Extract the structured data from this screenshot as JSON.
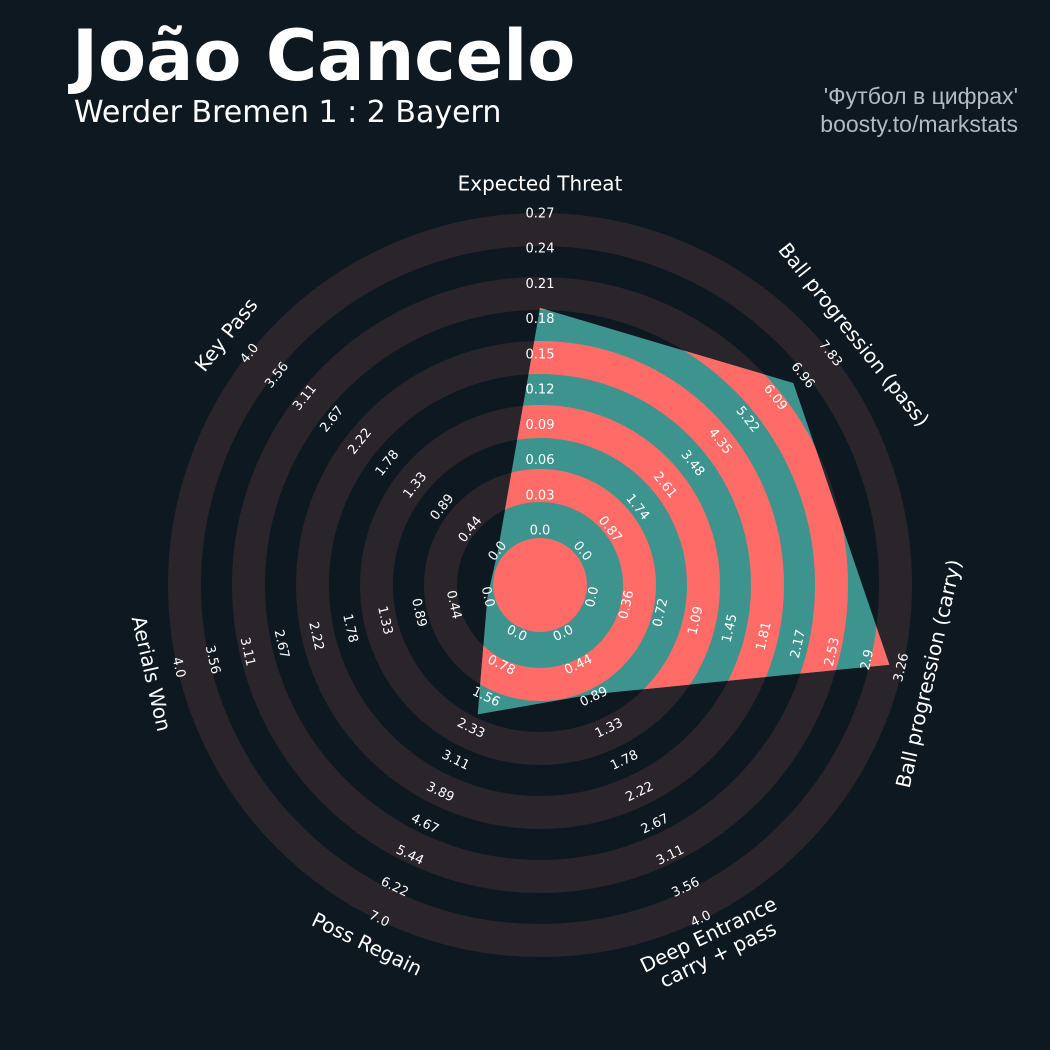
{
  "chart_data": {
    "type": "radar",
    "title": "João Cancelo",
    "subtitle": "Werder Bremen 1 : 2 Bayern",
    "annotations": [
      "'Футбол в цифрах'",
      "boosty.to/markstats"
    ],
    "color": "#3d948f",
    "highlight_color": "#ff6b66",
    "ring_color": "#29252b",
    "params": [
      "Expected Threat",
      "Ball progression (pass)",
      "Ball progression (carry)",
      "Deep Entrance\ncarry + pass",
      "Poss Regain",
      "Aerials Won",
      "Key Pass"
    ],
    "values": [
      0.19,
      6.67,
      3.13,
      0.85,
      1.98,
      0,
      0
    ],
    "axes": [
      {
        "lim": [
          0,
          0.27
        ],
        "ticks": [
          {
            "value": 0,
            "label": "0.0"
          },
          0.03,
          0.06,
          0.09,
          0.12,
          0.15,
          0.18,
          0.21,
          0.24,
          0.27
        ]
      },
      {
        "lim": [
          0,
          7.83
        ],
        "ticks": [
          {
            "value": 0,
            "label": "0.0"
          },
          0.87,
          1.74,
          2.61,
          3.48,
          4.35,
          5.22,
          6.09,
          6.96,
          7.83
        ]
      },
      {
        "lim": [
          0,
          3.26
        ],
        "ticks": [
          {
            "value": 0,
            "label": "0.0"
          },
          0.36,
          0.72,
          1.09,
          1.45,
          1.81,
          2.17,
          2.53,
          2.9,
          3.26
        ]
      },
      {
        "lim": [
          0,
          4
        ],
        "ticks": [
          {
            "value": 0,
            "label": "0.0"
          },
          0.44,
          0.89,
          1.33,
          1.78,
          2.22,
          2.67,
          3.11,
          3.56,
          {
            "value": 4,
            "label": "4.0"
          }
        ]
      },
      {
        "lim": [
          0,
          7
        ],
        "ticks": [
          {
            "value": 0,
            "label": "0.0"
          },
          0.78,
          1.56,
          2.33,
          3.11,
          3.89,
          4.67,
          5.44,
          6.22,
          {
            "value": 7,
            "label": "7.0"
          }
        ]
      },
      {
        "lim": [
          0,
          4
        ],
        "ticks": [
          {
            "value": 0,
            "label": "0.0"
          },
          0.44,
          0.89,
          1.33,
          1.78,
          2.22,
          2.67,
          3.11,
          3.56,
          {
            "value": 4,
            "label": "4.0"
          }
        ]
      },
      {
        "lim": [
          0,
          4
        ],
        "ticks": [
          {
            "value": 0,
            "label": "0.0"
          },
          0.44,
          0.89,
          1.33,
          1.78,
          2.22,
          2.67,
          3.11,
          3.56,
          {
            "value": 4,
            "label": "4.0"
          }
        ]
      }
    ]
  }
}
